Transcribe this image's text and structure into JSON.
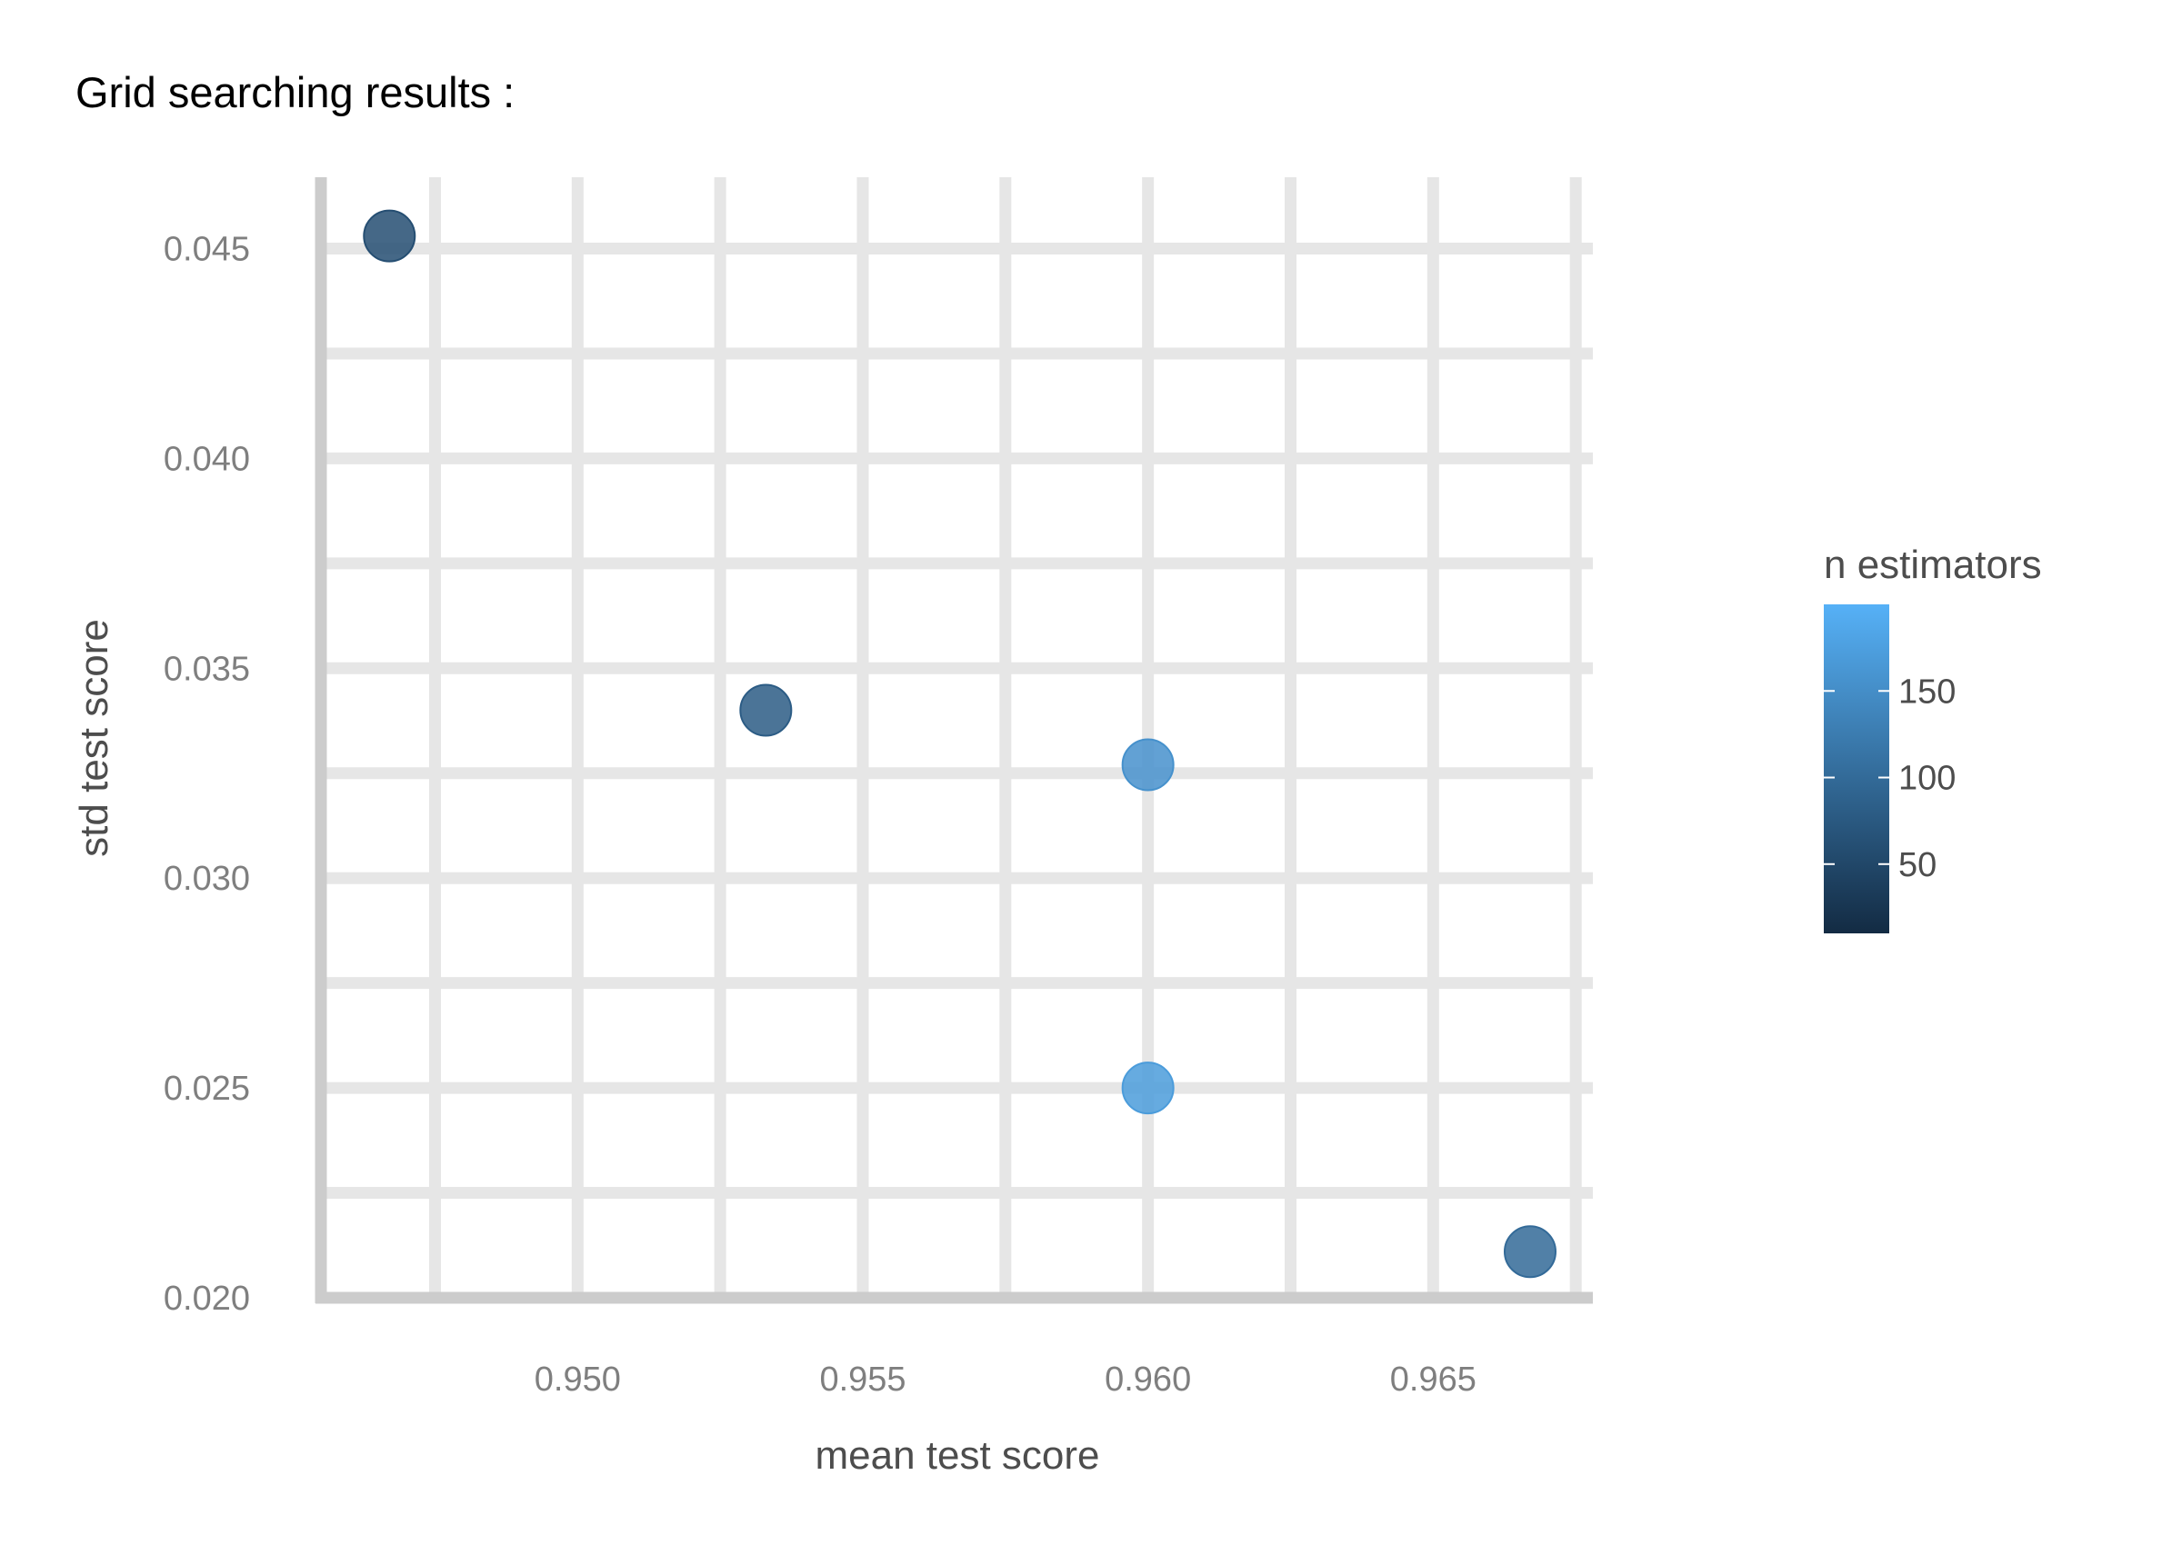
{
  "chart_data": {
    "type": "scatter",
    "title": "Grid searching results :",
    "xlabel": "mean test score",
    "ylabel": "std test score",
    "xlim": [
      0.9455,
      0.9678
    ],
    "ylim": [
      0.02,
      0.0467
    ],
    "x_ticks": [
      "0.950",
      "0.955",
      "0.960",
      "0.965"
    ],
    "x_tick_values": [
      0.95,
      0.955,
      0.96,
      0.965
    ],
    "y_ticks": [
      "0.020",
      "0.025",
      "0.030",
      "0.035",
      "0.040",
      "0.045"
    ],
    "y_tick_values": [
      0.02,
      0.025,
      0.03,
      0.035,
      0.04,
      0.045
    ],
    "grid": true,
    "color_legend": {
      "title": "n estimators",
      "ticks": [
        "50",
        "100",
        "150"
      ],
      "tick_values": [
        50,
        100,
        150
      ],
      "range": [
        10,
        200
      ],
      "color_low": "#132B43",
      "color_high": "#56B1F7",
      "position": "right"
    },
    "points": [
      {
        "x": 0.9467,
        "y": 0.0453,
        "n_estimators": 60
      },
      {
        "x": 0.9533,
        "y": 0.034,
        "n_estimators": 80
      },
      {
        "x": 0.96,
        "y": 0.0327,
        "n_estimators": 155
      },
      {
        "x": 0.96,
        "y": 0.025,
        "n_estimators": 170
      },
      {
        "x": 0.9667,
        "y": 0.0211,
        "n_estimators": 100
      }
    ]
  }
}
